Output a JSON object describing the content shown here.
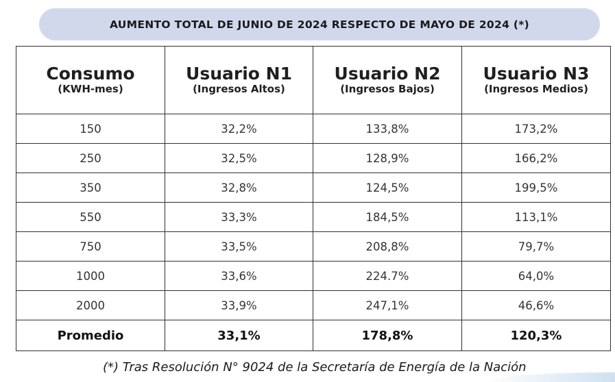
{
  "banner": {
    "title": "AUMENTO TOTAL DE JUNIO DE 2024 RESPECTO DE MAYO DE 2024 (*)"
  },
  "table": {
    "headers": [
      {
        "main": "Consumo",
        "sub": "(KWH-mes)"
      },
      {
        "main": "Usuario N1",
        "sub": "(Ingresos Altos)"
      },
      {
        "main": "Usuario N2",
        "sub": "(Ingresos Bajos)"
      },
      {
        "main": "Usuario N3",
        "sub": "(Ingresos Medios)"
      }
    ],
    "rows": [
      [
        "150",
        "32,2%",
        "133,8%",
        "173,2%"
      ],
      [
        "250",
        "32,5%",
        "128,9%",
        "166,2%"
      ],
      [
        "350",
        "32,8%",
        "124,5%",
        "199,5%"
      ],
      [
        "550",
        "33,3%",
        "184,5%",
        "113,1%"
      ],
      [
        "750",
        "33,5%",
        "208,8%",
        "79,7%"
      ],
      [
        "1000",
        "33,6%",
        "224.7%",
        "64,0%"
      ],
      [
        "2000",
        "33,9%",
        "247,1%",
        "46,6%"
      ]
    ],
    "average": [
      "Promedio",
      "33,1%",
      "178,8%",
      "120,3%"
    ]
  },
  "footnote": "(*) Tras Resolución N° 9024 de la Secretaría de Energía de la Nación"
}
